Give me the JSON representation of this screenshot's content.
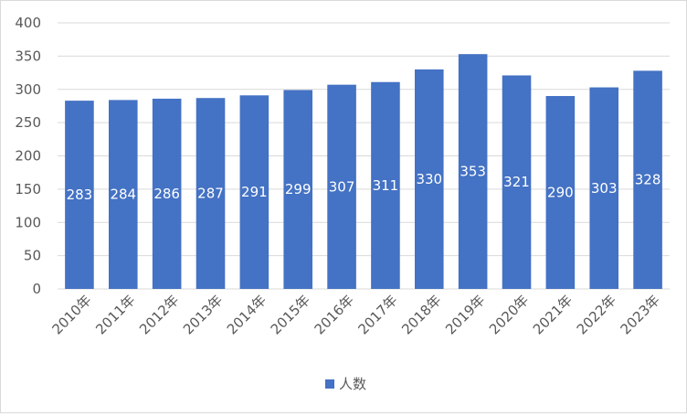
{
  "chart_data": {
    "type": "bar",
    "categories": [
      "2010年",
      "2011年",
      "2012年",
      "2013年",
      "2014年",
      "2015年",
      "2016年",
      "2017年",
      "2018年",
      "2019年",
      "2020年",
      "2021年",
      "2022年",
      "2023年"
    ],
    "series": [
      {
        "name": "人数",
        "values": [
          283,
          284,
          286,
          287,
          291,
          299,
          307,
          311,
          330,
          353,
          321,
          290,
          303,
          328
        ]
      }
    ],
    "ylim": [
      0,
      400
    ],
    "yticks": [
      0,
      50,
      100,
      150,
      200,
      250,
      300,
      350,
      400
    ],
    "grid": true,
    "legend": "bottom",
    "data_labels": "inside-middle",
    "colors": {
      "bar": "#4472c4",
      "label": "#ffffff",
      "grid": "#d9d9d9",
      "axis_text": "#595959"
    }
  }
}
